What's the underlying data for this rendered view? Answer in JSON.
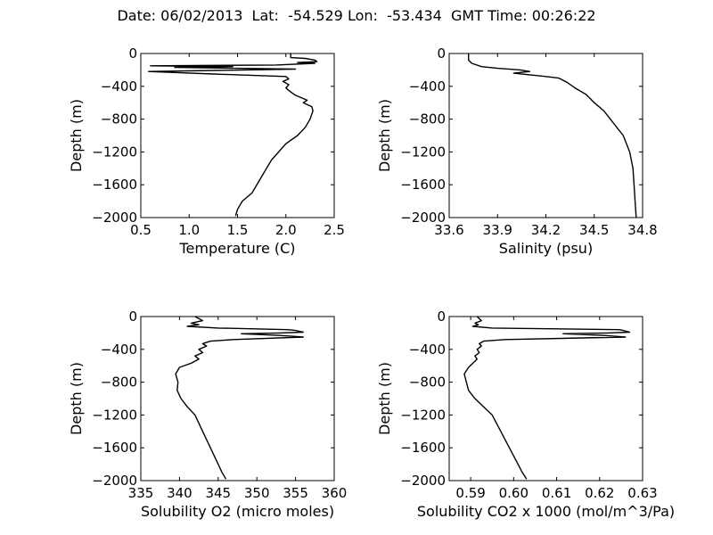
{
  "figure": {
    "title": "Date: 06/02/2013  Lat:  -54.529 Lon:  -53.434  GMT Time: 00:26:22"
  },
  "chart_data": [
    {
      "type": "line",
      "xlabel": "Temperature (C)",
      "ylabel": "Depth (m)",
      "xlim": [
        0.5,
        2.5
      ],
      "ylim": [
        -2000,
        0
      ],
      "xticks": [
        0.5,
        1.0,
        1.5,
        2.0,
        2.5
      ],
      "xtick_labels": [
        "0.5",
        "1.0",
        "1.5",
        "2.0",
        "2.5"
      ],
      "yticks": [
        0,
        -400,
        -800,
        -1200,
        -1600,
        -2000
      ],
      "ytick_labels": [
        "0",
        "−400",
        "−800",
        "−1200",
        "−1600",
        "−2000"
      ],
      "series": [
        {
          "x": [
            2.05,
            2.05,
            2.2,
            2.3,
            2.32,
            2.12,
            2.3,
            1.9,
            0.6,
            1.45,
            0.85,
            2.1,
            0.58,
            1.25,
            1.5,
            2.0,
            2.03,
            1.97,
            2.03,
            2.0,
            2.04,
            2.1,
            2.22,
            2.18,
            2.27,
            2.28,
            2.25,
            2.2,
            2.12,
            2.0,
            1.85,
            1.75,
            1.65,
            1.55,
            1.5,
            1.48
          ],
          "y": [
            0,
            -50,
            -60,
            -80,
            -100,
            -110,
            -120,
            -140,
            -150,
            -160,
            -170,
            -190,
            -220,
            -250,
            -260,
            -280,
            -310,
            -340,
            -380,
            -420,
            -460,
            -510,
            -570,
            -600,
            -650,
            -700,
            -800,
            -900,
            -1000,
            -1100,
            -1300,
            -1500,
            -1700,
            -1800,
            -1900,
            -1980
          ]
        }
      ]
    },
    {
      "type": "line",
      "xlabel": "Salinity (psu)",
      "ylabel": "Depth (m)",
      "xlim": [
        33.6,
        34.8
      ],
      "ylim": [
        -2000,
        0
      ],
      "xticks": [
        33.6,
        33.9,
        34.2,
        34.5,
        34.8
      ],
      "xtick_labels": [
        "33.6",
        "33.9",
        "34.2",
        "34.5",
        "34.8"
      ],
      "yticks": [
        0,
        -400,
        -800,
        -1200,
        -1600,
        -2000
      ],
      "ytick_labels": [
        "0",
        "−400",
        "−800",
        "−1200",
        "−1600",
        "−2000"
      ],
      "series": [
        {
          "x": [
            33.72,
            33.72,
            33.74,
            33.8,
            33.9,
            34.04,
            34.1,
            34.0,
            34.1,
            34.2,
            34.28,
            34.33,
            34.38,
            34.45,
            34.5,
            34.56,
            34.62,
            34.68,
            34.72,
            34.74,
            34.75,
            34.76
          ],
          "y": [
            0,
            -80,
            -120,
            -160,
            -180,
            -200,
            -220,
            -240,
            -260,
            -280,
            -300,
            -350,
            -420,
            -500,
            -600,
            -700,
            -850,
            -1000,
            -1200,
            -1400,
            -1700,
            -2000
          ]
        }
      ]
    },
    {
      "type": "line",
      "xlabel": "Solubility O2 (micro moles)",
      "ylabel": "Depth (m)",
      "xlim": [
        335,
        360
      ],
      "ylim": [
        -2000,
        0
      ],
      "xticks": [
        335,
        340,
        345,
        350,
        355,
        360
      ],
      "xtick_labels": [
        "335",
        "340",
        "345",
        "350",
        "355",
        "360"
      ],
      "yticks": [
        0,
        -400,
        -800,
        -1200,
        -1600,
        -2000
      ],
      "ytick_labels": [
        "0",
        "−400",
        "−800",
        "−1200",
        "−1600",
        "−2000"
      ],
      "series": [
        {
          "x": [
            342,
            343,
            341.5,
            342.5,
            341,
            345,
            354,
            355,
            356,
            353,
            348,
            353,
            356,
            347,
            344,
            343,
            343.5,
            342.5,
            343,
            342,
            342.5,
            341.5,
            340,
            339.5,
            339.8,
            339.7,
            340.2,
            341,
            342,
            343,
            344,
            345,
            345.5,
            346
          ],
          "y": [
            0,
            -50,
            -80,
            -100,
            -120,
            -140,
            -160,
            -170,
            -190,
            -200,
            -210,
            -230,
            -250,
            -280,
            -300,
            -330,
            -360,
            -400,
            -440,
            -480,
            -520,
            -570,
            -620,
            -700,
            -800,
            -900,
            -1000,
            -1100,
            -1200,
            -1400,
            -1600,
            -1800,
            -1900,
            -1980
          ]
        }
      ]
    },
    {
      "type": "line",
      "xlabel": "Solubility CO2 x 1000 (mol/m^3/Pa)",
      "ylabel": "Depth (m)",
      "xlim": [
        0.585,
        0.63
      ],
      "ylim": [
        -2000,
        0
      ],
      "xticks": [
        0.59,
        0.6,
        0.61,
        0.62,
        0.63
      ],
      "xtick_labels": [
        "0.59",
        "0.60",
        "0.61",
        "0.62",
        "0.63"
      ],
      "yticks": [
        0,
        -400,
        -800,
        -1200,
        -1600,
        -2000
      ],
      "ytick_labels": [
        "0",
        "−400",
        "−800",
        "−1200",
        "−1600",
        "−2000"
      ],
      "series": [
        {
          "x": [
            0.5915,
            0.5925,
            0.591,
            0.5918,
            0.5905,
            0.595,
            0.6245,
            0.6255,
            0.627,
            0.622,
            0.6115,
            0.621,
            0.626,
            0.598,
            0.593,
            0.592,
            0.5925,
            0.5915,
            0.592,
            0.591,
            0.5915,
            0.5905,
            0.5895,
            0.5885,
            0.589,
            0.5895,
            0.591,
            0.593,
            0.595,
            0.597,
            0.599,
            0.601,
            0.602,
            0.603
          ],
          "y": [
            0,
            -50,
            -80,
            -100,
            -120,
            -140,
            -160,
            -170,
            -190,
            -200,
            -210,
            -230,
            -250,
            -280,
            -300,
            -330,
            -360,
            -400,
            -440,
            -480,
            -520,
            -570,
            -620,
            -700,
            -800,
            -900,
            -1000,
            -1100,
            -1200,
            -1400,
            -1600,
            -1800,
            -1900,
            -1980
          ]
        }
      ]
    }
  ]
}
